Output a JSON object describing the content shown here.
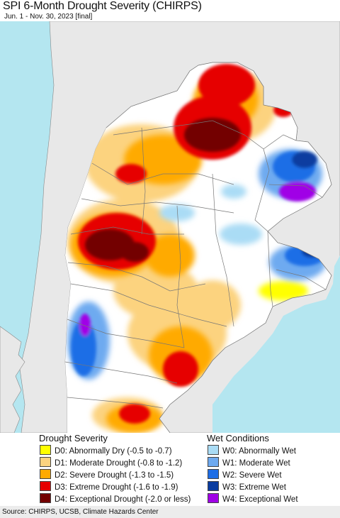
{
  "title": "SPI 6-Month Drought Severity (CHIRPS)",
  "subtitle": "Jun. 1 - Nov. 30, 2023 [final]",
  "legend": {
    "drought_heading": "Drought Severity",
    "wet_heading": "Wet Conditions",
    "drought_items": [
      {
        "label": "D0: Abnormally Dry (-0.5 to -0.7)",
        "color": "#ffff00"
      },
      {
        "label": "D1: Moderate Drought (-0.8 to -1.2)",
        "color": "#fcd37f"
      },
      {
        "label": "D2: Severe Drought (-1.3 to -1.5)",
        "color": "#ffaa00"
      },
      {
        "label": "D3: Extreme Drought (-1.6 to -1.9)",
        "color": "#e60000"
      },
      {
        "label": "D4: Exceptional Drought (-2.0 or less)",
        "color": "#730000"
      }
    ],
    "wet_items": [
      {
        "label": "W0: Abnormally Wet",
        "color": "#aadcf5"
      },
      {
        "label": "W1: Moderate Wet",
        "color": "#6eaaf0"
      },
      {
        "label": "W2: Severe Wet",
        "color": "#1e6ee6"
      },
      {
        "label": "W3: Extreme Wet",
        "color": "#0a3ca0"
      },
      {
        "label": "W4: Exceptional Wet",
        "color": "#a000e6"
      }
    ]
  },
  "colors": {
    "ocean": "#b4e6f0",
    "land_outside": "#e8e8e8",
    "land_normal": "#ffffff",
    "boundary": "#777777"
  },
  "source": "Source: CHIRPS, UCSB, Climate Hazards Center"
}
